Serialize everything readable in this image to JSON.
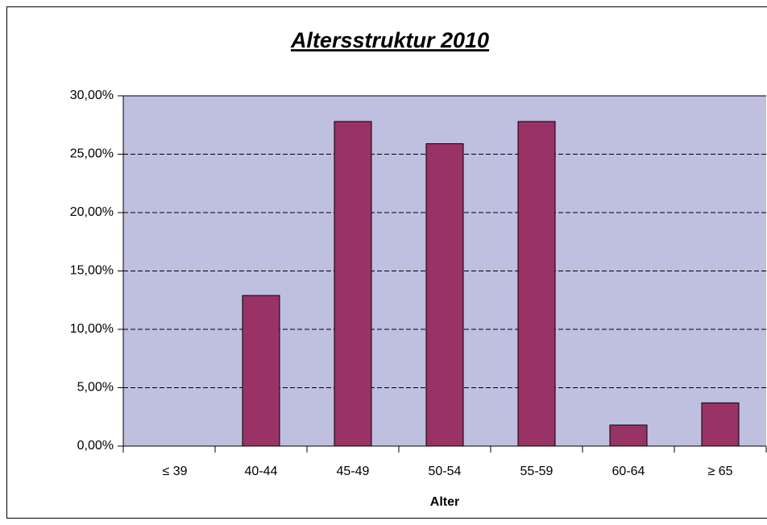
{
  "chart_data": {
    "type": "bar",
    "title": "Altersstruktur 2010",
    "x_label": "Alter",
    "categories": [
      "≤ 39",
      "40-44",
      "45-49",
      "50-54",
      "55-59",
      "60-64",
      "≥ 65"
    ],
    "values": [
      0,
      12.9,
      27.8,
      25.9,
      27.8,
      1.8,
      3.7
    ],
    "color": "#993366",
    "plot_background": "#BFBFE0",
    "ylim": [
      0,
      30
    ],
    "yticks": [
      {
        "value": 0,
        "label": "0,00%"
      },
      {
        "value": 5,
        "label": "5,00%"
      },
      {
        "value": 10,
        "label": "10,00%"
      },
      {
        "value": 15,
        "label": "15,00%"
      },
      {
        "value": 20,
        "label": "20,00%"
      },
      {
        "value": 25,
        "label": "25,00%"
      },
      {
        "value": 30,
        "label": "30,00%"
      }
    ],
    "grid": true
  }
}
